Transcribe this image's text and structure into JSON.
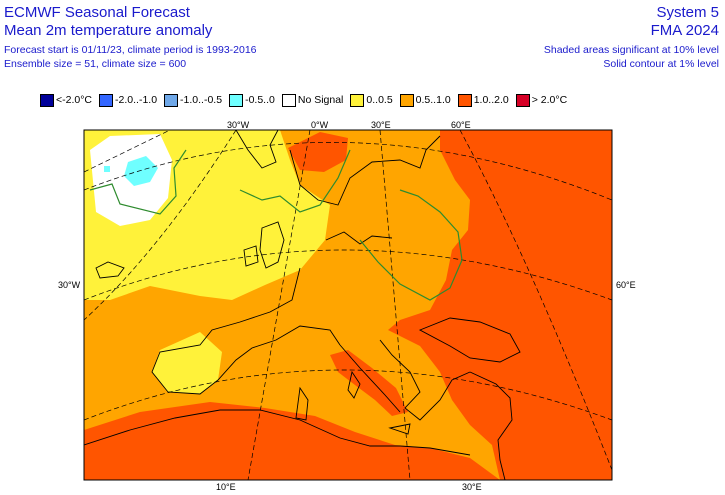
{
  "header": {
    "title_line1": "ECMWF Seasonal Forecast",
    "title_line2": "Mean 2m temperature anomaly",
    "info_line1": "Forecast start is 01/11/23, climate period is 1993-2016",
    "info_line2": "Ensemble size = 51, climate size = 600",
    "system": "System 5",
    "season": "FMA 2024",
    "significance_line1": "Shaded areas significant at 10% level",
    "significance_line2": "Solid contour at 1% level"
  },
  "legend": [
    {
      "label": "<-2.0°C",
      "color": "#000099"
    },
    {
      "label": "-2.0..-1.0",
      "color": "#3366ff"
    },
    {
      "label": "-1.0..-0.5",
      "color": "#6fa8e8"
    },
    {
      "label": "-0.5..0",
      "color": "#6fffff"
    },
    {
      "label": "No Signal",
      "color": "#ffffff"
    },
    {
      "label": "0..0.5",
      "color": "#fff23a"
    },
    {
      "label": "0.5..1.0",
      "color": "#ffa500"
    },
    {
      "label": "1.0..2.0",
      "color": "#ff5500"
    },
    {
      "label": "> 2.0°C",
      "color": "#d60026"
    }
  ],
  "map_labels": {
    "top_30w": "30°W",
    "top_0w": "0°W",
    "top_30e": "30°E",
    "top_60e": "60°E",
    "left_30w": "30°W",
    "right_60e": "60°E",
    "bottom_10e": "10°E",
    "bottom_30e": "30°E"
  },
  "colors": {
    "frame": "#000000",
    "coast": "#000000",
    "graticule": "#000000",
    "significance_contour": "#2e8b2e"
  }
}
